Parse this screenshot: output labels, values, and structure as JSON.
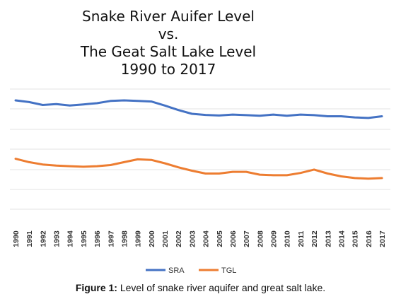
{
  "chart_data": {
    "type": "line",
    "title_lines": [
      "Snake River Auifer Level",
      "vs.",
      "The Geat Salt Lake Level",
      "1990 to 2017"
    ],
    "x": [
      "1990",
      "1991",
      "1992",
      "1993",
      "1994",
      "1995",
      "1996",
      "1997",
      "1998",
      "1999",
      "2000",
      "2001",
      "2002",
      "2003",
      "2004",
      "2005",
      "2006",
      "2007",
      "2008",
      "2009",
      "2010",
      "2011",
      "2012",
      "2013",
      "2014",
      "2015",
      "2016",
      "2017"
    ],
    "series": [
      {
        "name": "SRA",
        "color": "#4472c4",
        "values": [
          7.6,
          7.45,
          7.2,
          7.28,
          7.15,
          7.25,
          7.35,
          7.55,
          7.6,
          7.55,
          7.5,
          7.15,
          6.75,
          6.42,
          6.32,
          6.27,
          6.35,
          6.3,
          6.25,
          6.35,
          6.25,
          6.35,
          6.3,
          6.2,
          6.2,
          6.1,
          6.05,
          6.2
        ]
      },
      {
        "name": "TGL",
        "color": "#ed7d31",
        "values": [
          2.45,
          2.15,
          1.95,
          1.85,
          1.8,
          1.75,
          1.8,
          1.9,
          2.15,
          2.4,
          2.35,
          2.05,
          1.7,
          1.4,
          1.15,
          1.15,
          1.3,
          1.3,
          1.05,
          1.0,
          1.0,
          1.2,
          1.5,
          1.15,
          0.9,
          0.75,
          0.7,
          0.75
        ]
      }
    ],
    "ylim": [
      -2,
      8.6
    ],
    "grid": true,
    "legend_position": "bottom"
  },
  "caption": {
    "label": "Figure 1:",
    "text": " Level of snake river aquifer and great salt lake."
  }
}
